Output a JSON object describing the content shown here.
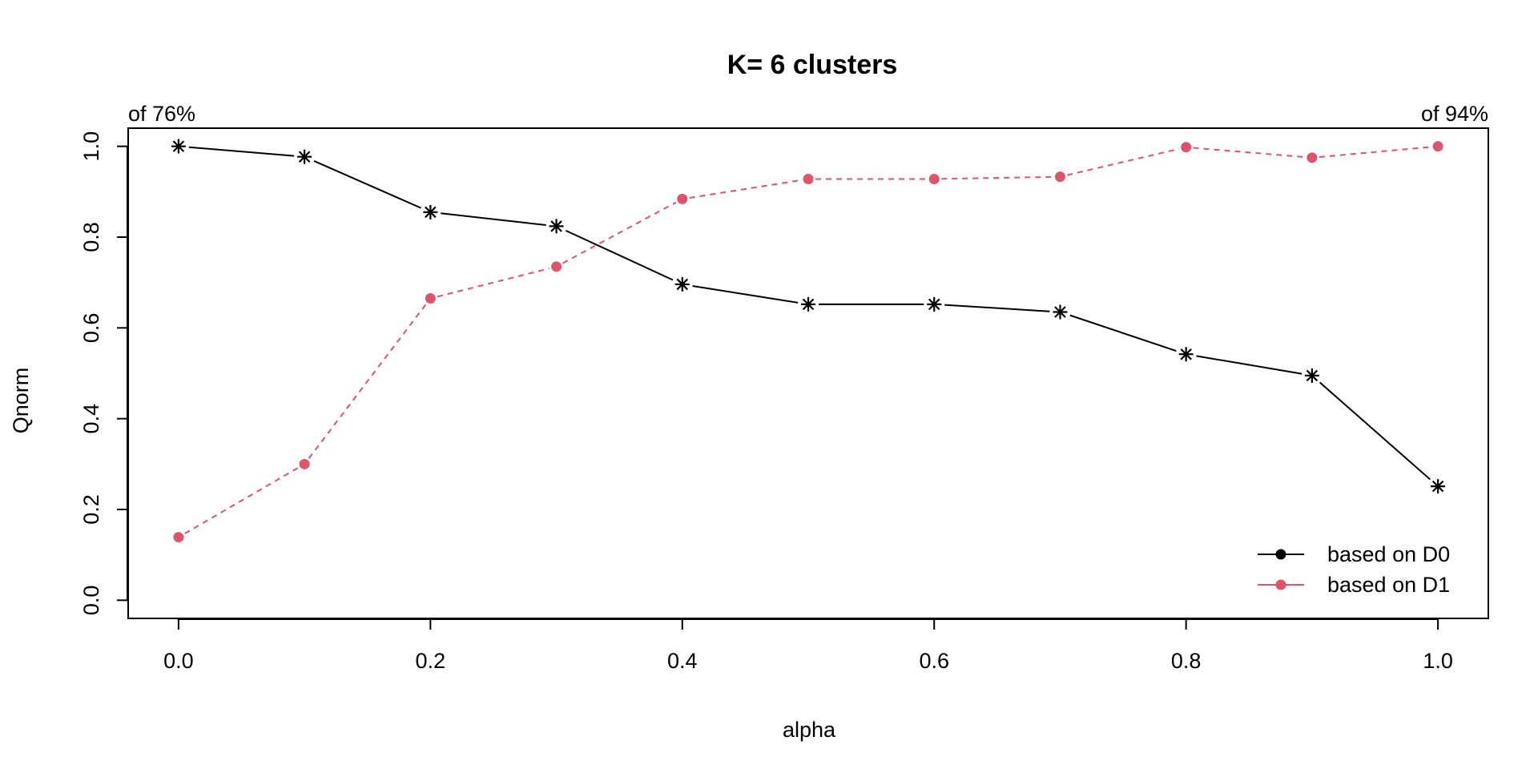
{
  "chart_data": {
    "type": "line",
    "title": "K= 6 clusters",
    "xlabel": "alpha",
    "ylabel": "Qnorm",
    "xlim": [
      -0.04,
      1.04
    ],
    "ylim": [
      -0.04,
      1.04
    ],
    "x_ticks": [
      "0.0",
      "0.2",
      "0.4",
      "0.6",
      "0.8",
      "1.0"
    ],
    "y_ticks": [
      "0.0",
      "0.2",
      "0.4",
      "0.6",
      "0.8",
      "1.0"
    ],
    "grid": false,
    "legend_position": "bottom-right",
    "corner_left": "of 76%",
    "corner_right": "of 94%",
    "x": [
      0.0,
      0.1,
      0.2,
      0.3,
      0.4,
      0.5,
      0.6,
      0.7,
      0.8,
      0.9,
      1.0
    ],
    "series": [
      {
        "name": "based on D0",
        "color": "#000000",
        "line_style": "solid",
        "marker": "asterisk",
        "legend_marker": "filled-circle",
        "values": [
          1.0,
          0.977,
          0.855,
          0.824,
          0.696,
          0.652,
          0.652,
          0.635,
          0.542,
          0.495,
          0.251
        ]
      },
      {
        "name": "based on D1",
        "color": "#DF536B",
        "line_style": "dashed",
        "marker": "filled-circle",
        "legend_marker": "filled-circle",
        "values": [
          0.139,
          0.3,
          0.665,
          0.735,
          0.884,
          0.928,
          0.928,
          0.933,
          0.998,
          0.975,
          1.0
        ]
      }
    ]
  }
}
